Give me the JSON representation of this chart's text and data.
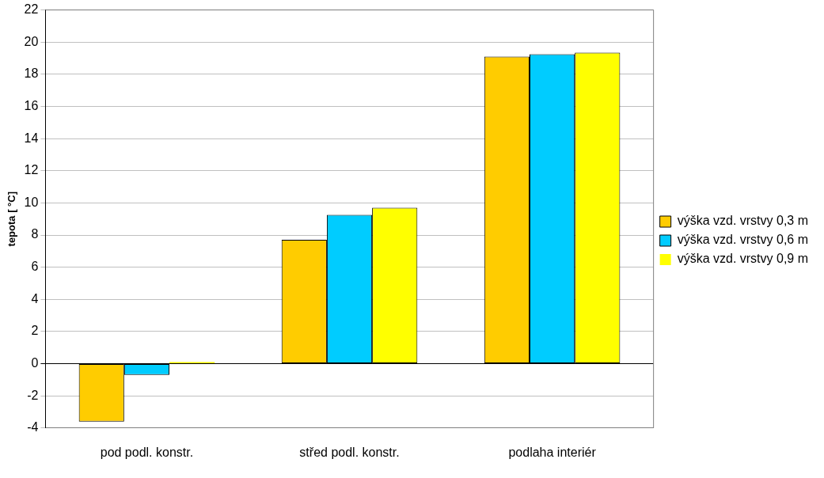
{
  "chart_data": {
    "type": "bar",
    "ylabel": "tepota [ °C]",
    "categories": [
      "pod podl. konstr.",
      "střed podl. konstr.",
      "podlaha interiér"
    ],
    "series": [
      {
        "name": "výška vzd. vrstvy 0,3 m",
        "color": "#ffcc00",
        "values": [
          -3.6,
          7.7,
          19.1
        ]
      },
      {
        "name": "výška vzd. vrstvy 0,6 m",
        "color": "#00ccff",
        "values": [
          -0.7,
          9.25,
          19.25
        ]
      },
      {
        "name": "výška vzd. vrstvy 0,9 m",
        "color": "#ffff00",
        "values": [
          0.1,
          9.7,
          19.35
        ]
      }
    ],
    "ylim": [
      -4,
      22
    ],
    "yticks": [
      -4,
      -2,
      0,
      2,
      4,
      6,
      8,
      10,
      12,
      14,
      16,
      18,
      20,
      22
    ],
    "grid": "y",
    "legend": "right"
  }
}
